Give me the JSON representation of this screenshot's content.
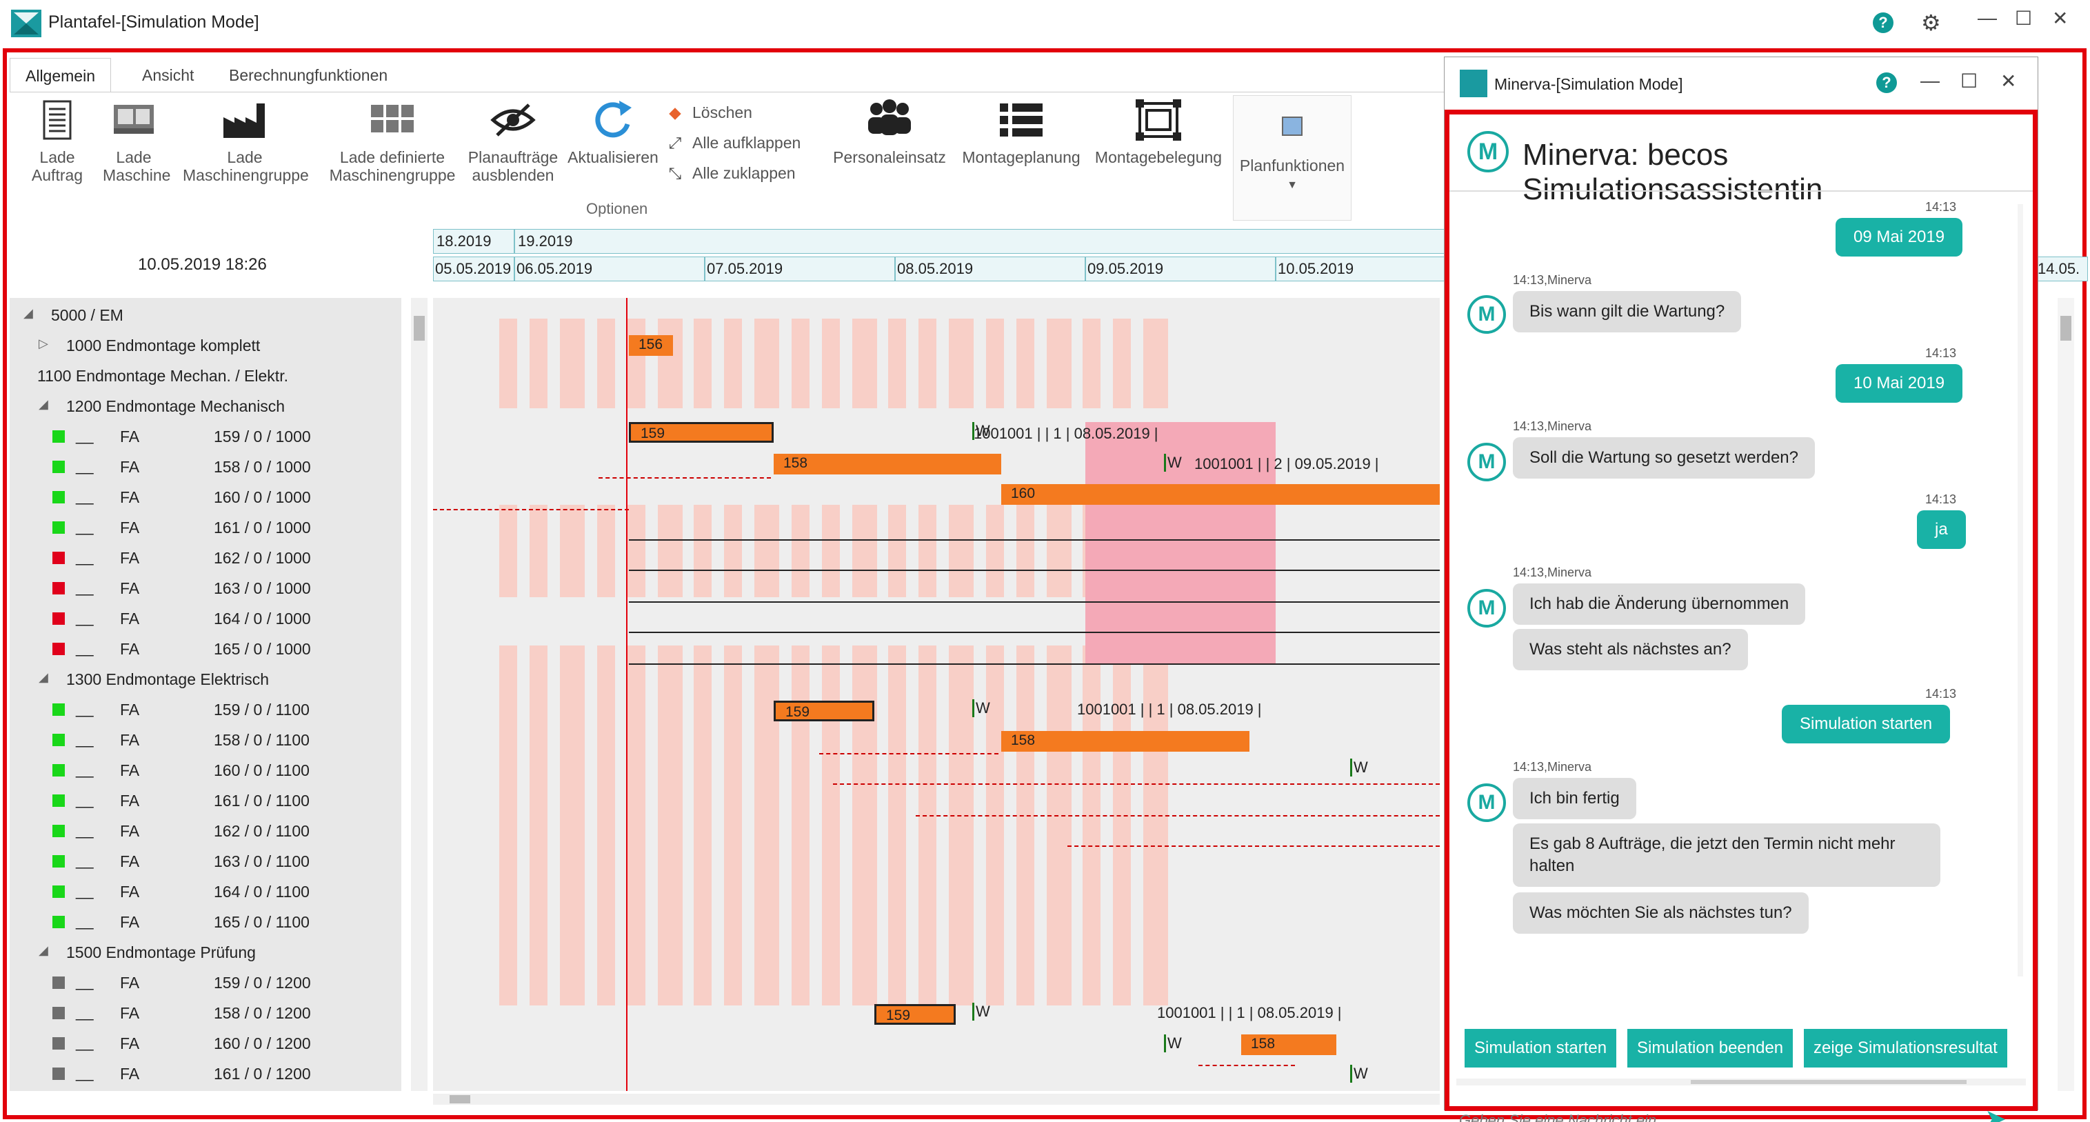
{
  "app": {
    "title": "Plantafel-[Simulation Mode]",
    "help_glyph": "?",
    "settings_glyph": "⚙",
    "minimize_glyph": "—",
    "maximize_glyph": "☐",
    "close_glyph": "✕"
  },
  "ribbon": {
    "tabs": [
      "Allgemein",
      "Ansicht",
      "Berechnungfunktionen"
    ],
    "buttons": {
      "lade_auftrag": "Lade Auftrag",
      "lade_maschine": "Lade Maschine",
      "lade_maschinengruppe": "Lade Maschinengruppe",
      "lade_definierte": "Lade definierte Maschinengruppe",
      "planauftraege": "Planaufträge ausblenden",
      "aktualisieren": "Aktualisieren",
      "loeschen": "Löschen",
      "alle_aufklappen": "Alle aufklappen",
      "alle_zuklappen": "Alle zuklappen",
      "personaleinsatz": "Personaleinsatz",
      "montageplanung": "Montageplanung",
      "montagebelegung": "Montagebelegung",
      "planfunktionen": "Planfunktionen"
    },
    "group_label": "Optionen"
  },
  "gantt": {
    "current_datetime": "10.05.2019 18:26",
    "timeline_top": [
      "18.2019",
      "19.2019"
    ],
    "timeline_days": [
      "05.05.2019",
      "06.05.2019",
      "07.05.2019",
      "08.05.2019",
      "09.05.2019",
      "10.05.2019",
      "14.05."
    ],
    "tree": [
      {
        "type": "group",
        "indent": 0,
        "label": "5000 / EM"
      },
      {
        "type": "group",
        "indent": 1,
        "label": "1000 Endmontage komplett"
      },
      {
        "type": "group",
        "indent": 1,
        "label": "1100 Endmontage Mechan. / Elektr."
      },
      {
        "type": "group",
        "indent": 1,
        "label": "1200 Endmontage Mechanisch"
      },
      {
        "type": "row",
        "status": "green",
        "dash": "__",
        "fa": "FA",
        "num": "159 / 0 / 1000"
      },
      {
        "type": "row",
        "status": "green",
        "dash": "__",
        "fa": "FA",
        "num": "158 / 0 / 1000"
      },
      {
        "type": "row",
        "status": "green",
        "dash": "__",
        "fa": "FA",
        "num": "160 / 0 / 1000"
      },
      {
        "type": "row",
        "status": "green",
        "dash": "__",
        "fa": "FA",
        "num": "161 / 0 / 1000"
      },
      {
        "type": "row",
        "status": "red",
        "dash": "__",
        "fa": "FA",
        "num": "162 / 0 / 1000"
      },
      {
        "type": "row",
        "status": "red",
        "dash": "__",
        "fa": "FA",
        "num": "163 / 0 / 1000"
      },
      {
        "type": "row",
        "status": "red",
        "dash": "__",
        "fa": "FA",
        "num": "164 / 0 / 1000"
      },
      {
        "type": "row",
        "status": "red",
        "dash": "__",
        "fa": "FA",
        "num": "165 / 0 / 1000"
      },
      {
        "type": "group",
        "indent": 1,
        "label": "1300 Endmontage Elektrisch"
      },
      {
        "type": "row",
        "status": "green",
        "dash": "__",
        "fa": "FA",
        "num": "159 / 0 / 1100"
      },
      {
        "type": "row",
        "status": "green",
        "dash": "__",
        "fa": "FA",
        "num": "158 / 0 / 1100"
      },
      {
        "type": "row",
        "status": "green",
        "dash": "__",
        "fa": "FA",
        "num": "160 / 0 / 1100"
      },
      {
        "type": "row",
        "status": "green",
        "dash": "__",
        "fa": "FA",
        "num": "161 / 0 / 1100"
      },
      {
        "type": "row",
        "status": "green",
        "dash": "__",
        "fa": "FA",
        "num": "162 / 0 / 1100"
      },
      {
        "type": "row",
        "status": "green",
        "dash": "__",
        "fa": "FA",
        "num": "163 / 0 / 1100"
      },
      {
        "type": "row",
        "status": "green",
        "dash": "__",
        "fa": "FA",
        "num": "164 / 0 / 1100"
      },
      {
        "type": "row",
        "status": "green",
        "dash": "__",
        "fa": "FA",
        "num": "165 / 0 / 1100"
      },
      {
        "type": "group",
        "indent": 1,
        "label": "1500 Endmontage Prüfung"
      },
      {
        "type": "row",
        "status": "gray",
        "dash": "__",
        "fa": "FA",
        "num": "159 / 0 / 1200"
      },
      {
        "type": "row",
        "status": "gray",
        "dash": "__",
        "fa": "FA",
        "num": "158 / 0 / 1200"
      },
      {
        "type": "row",
        "status": "gray",
        "dash": "__",
        "fa": "FA",
        "num": "160 / 0 / 1200"
      },
      {
        "type": "row",
        "status": "gray",
        "dash": "__",
        "fa": "FA",
        "num": "161 / 0 / 1200"
      }
    ],
    "bars": {
      "b156": "156",
      "b159a": "159",
      "b158a": "158",
      "b160a": "160",
      "b159b": "159",
      "b158b": "158",
      "b159c": "159",
      "b158c": "158"
    },
    "labels": {
      "l1": "1001001 |  | 1 | 08.05.2019 |",
      "l2": "1001001 |  | 2 | 09.05.2019 |",
      "l3": "1001001 |  | 1 | 08.05.2019 |",
      "l4": "1001001 |  | 1 | 08.05.2019 |"
    },
    "w_mark": "W"
  },
  "chat": {
    "window_title": "Minerva-[Simulation Mode]",
    "header_title": "Minerva: becos Simulationsassistentin",
    "avatar_letter": "M",
    "messages": [
      {
        "from": "user",
        "time": "14:13",
        "text": "09 Mai 2019"
      },
      {
        "from": "bot",
        "time": "14:13,Minerva",
        "texts": [
          "Bis wann gilt die Wartung?"
        ]
      },
      {
        "from": "user",
        "time": "14:13",
        "text": "10 Mai 2019"
      },
      {
        "from": "bot",
        "time": "14:13,Minerva",
        "texts": [
          "Soll die Wartung so gesetzt werden?"
        ]
      },
      {
        "from": "user",
        "time": "14:13",
        "text": "ja"
      },
      {
        "from": "bot",
        "time": "14:13,Minerva",
        "texts": [
          "Ich hab die Änderung übernommen",
          "Was steht als nächstes an?"
        ]
      },
      {
        "from": "user",
        "time": "14:13",
        "text": "Simulation starten"
      },
      {
        "from": "bot",
        "time": "14:13,Minerva",
        "texts": [
          "Ich bin fertig",
          "Es gab 8 Aufträge, die jetzt den Termin nicht mehr halten",
          "Was möchten Sie als nächstes tun?"
        ]
      }
    ],
    "quick_replies": [
      "Simulation starten",
      "Simulation beenden",
      "zeige Simulationsresultat"
    ],
    "input_placeholder": "Geben Sie eine Nachricht ein...",
    "send_glyph": "➤"
  },
  "colors": {
    "brand_teal": "#19b2a6",
    "frame_red": "#e2000b",
    "bar_orange": "#f47a1f",
    "status_green": "#19d719",
    "status_red": "#e0001b",
    "status_gray": "#6e6e6e"
  }
}
